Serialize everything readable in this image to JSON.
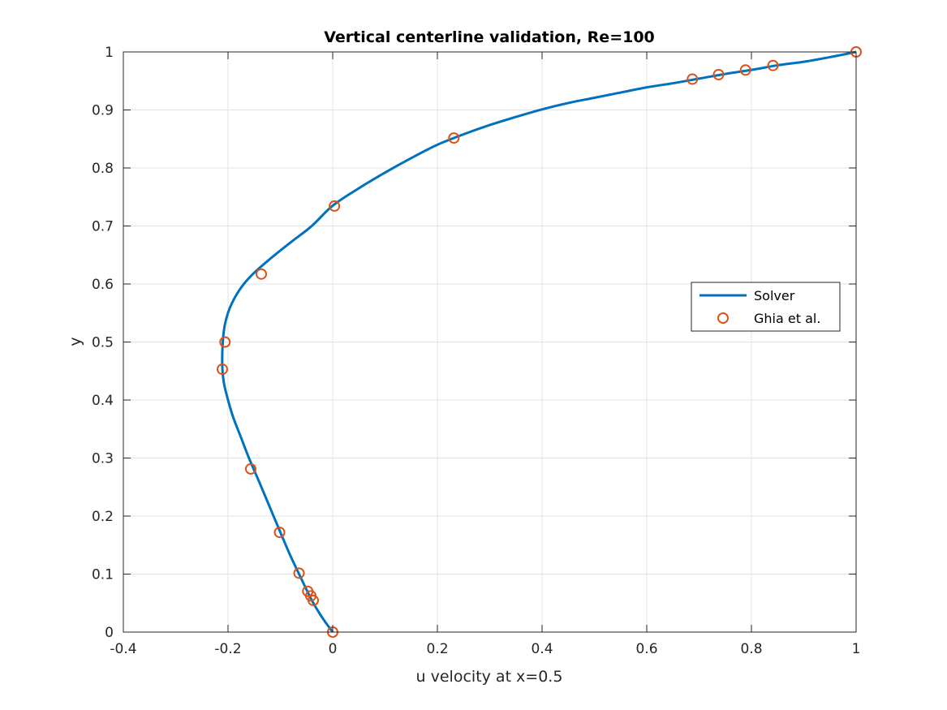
{
  "chart_data": {
    "type": "line",
    "title": "Vertical centerline validation, Re=100",
    "xlabel": "u velocity at x=0.5",
    "ylabel": "y",
    "xlim": [
      -0.4,
      1
    ],
    "ylim": [
      0,
      1
    ],
    "xticks": [
      "-0.4",
      "-0.2",
      "0",
      "0.2",
      "0.4",
      "0.6",
      "0.8",
      "1"
    ],
    "yticks": [
      "0",
      "0.1",
      "0.2",
      "0.3",
      "0.4",
      "0.5",
      "0.6",
      "0.7",
      "0.8",
      "0.9",
      "1"
    ],
    "grid": true,
    "legend_position": "right",
    "series": [
      {
        "name": "Solver",
        "style": "line",
        "color": "#0072BD",
        "points": [
          [
            0.0,
            0.0
          ],
          [
            -0.02,
            0.025
          ],
          [
            -0.04,
            0.055
          ],
          [
            -0.06,
            0.092
          ],
          [
            -0.08,
            0.13
          ],
          [
            -0.1,
            0.172
          ],
          [
            -0.12,
            0.215
          ],
          [
            -0.14,
            0.258
          ],
          [
            -0.16,
            0.3
          ],
          [
            -0.175,
            0.335
          ],
          [
            -0.19,
            0.37
          ],
          [
            -0.2,
            0.4
          ],
          [
            -0.208,
            0.43
          ],
          [
            -0.211,
            0.46
          ],
          [
            -0.21,
            0.5
          ],
          [
            -0.206,
            0.53
          ],
          [
            -0.196,
            0.56
          ],
          [
            -0.178,
            0.59
          ],
          [
            -0.155,
            0.615
          ],
          [
            -0.12,
            0.643
          ],
          [
            -0.08,
            0.672
          ],
          [
            -0.04,
            0.7
          ],
          [
            0.0,
            0.735
          ],
          [
            0.05,
            0.765
          ],
          [
            0.1,
            0.792
          ],
          [
            0.15,
            0.817
          ],
          [
            0.2,
            0.84
          ],
          [
            0.25,
            0.858
          ],
          [
            0.3,
            0.874
          ],
          [
            0.35,
            0.888
          ],
          [
            0.4,
            0.901
          ],
          [
            0.45,
            0.912
          ],
          [
            0.5,
            0.921
          ],
          [
            0.55,
            0.93
          ],
          [
            0.6,
            0.939
          ],
          [
            0.65,
            0.946
          ],
          [
            0.7,
            0.954
          ],
          [
            0.75,
            0.962
          ],
          [
            0.8,
            0.969
          ],
          [
            0.85,
            0.977
          ],
          [
            0.9,
            0.983
          ],
          [
            0.95,
            0.991
          ],
          [
            1.0,
            1.0
          ]
        ]
      },
      {
        "name": "Ghia et al.",
        "style": "marker",
        "color": "#D95319",
        "points": [
          [
            0.0,
            0.0
          ],
          [
            -0.0372,
            0.0547
          ],
          [
            -0.0419,
            0.0625
          ],
          [
            -0.0477,
            0.0703
          ],
          [
            -0.0643,
            0.1016
          ],
          [
            -0.1015,
            0.1719
          ],
          [
            -0.1566,
            0.2813
          ],
          [
            -0.2109,
            0.4531
          ],
          [
            -0.2058,
            0.5
          ],
          [
            -0.1364,
            0.6172
          ],
          [
            0.0033,
            0.7344
          ],
          [
            0.2315,
            0.8516
          ],
          [
            0.6872,
            0.9531
          ],
          [
            0.7372,
            0.9609
          ],
          [
            0.7887,
            0.9688
          ],
          [
            0.8412,
            0.9766
          ],
          [
            1.0,
            1.0
          ]
        ]
      }
    ]
  }
}
